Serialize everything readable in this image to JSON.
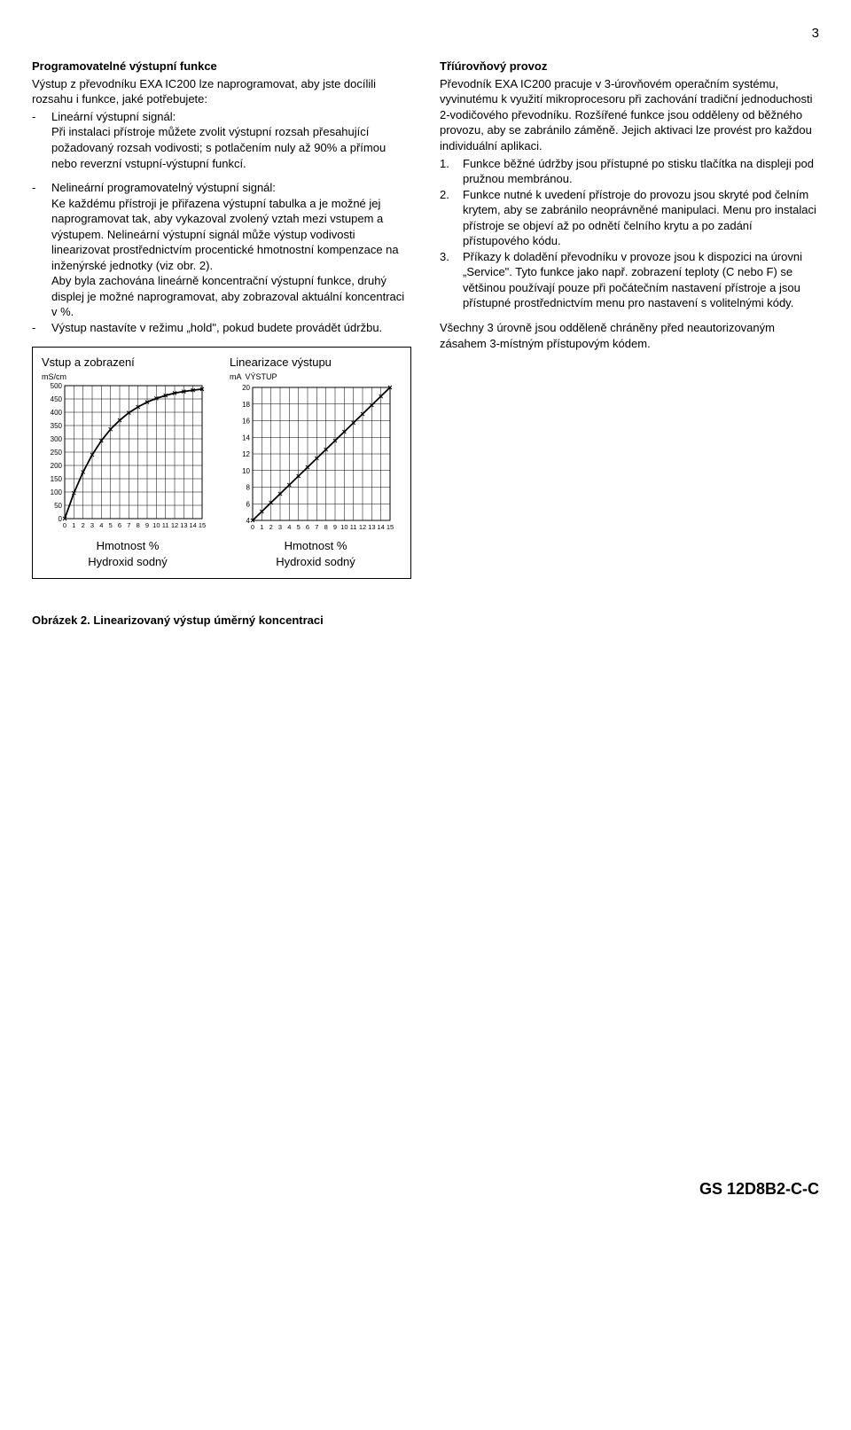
{
  "page_number": "3",
  "left": {
    "heading": "Programovatelné výstupní funkce",
    "intro": "Výstup z převodníku EXA IC200 lze naprogramovat, aby jste docílili rozsahu i funkce, jaké potřebujete:",
    "items": [
      "Lineární výstupní signál:\nPři instalaci přístroje můžete zvolit výstupní rozsah přesahující požadovaný rozsah vodivosti; s potlačením nuly až 90% a přímou nebo reverzní vstupní-výstupní funkcí.",
      "Nelineární programovatelný výstupní signál:\nKe každému přístroji je přiřazena výstupní tabulka a je možné jej naprogramovat tak, aby vykazoval zvolený vztah mezi vstupem a výstupem. Nelineární výstupní signál může výstup vodivosti linearizovat prostřednictvím procentické hmotnostní kompenzace na inženýrské jednotky (viz obr. 2).\nAby byla zachována lineárně koncentrační výstupní funkce, druhý displej je možné naprogramovat, aby zobrazoval aktuální koncentraci v %.",
      "Výstup nastavíte v režimu „hold\", pokud budete provádět údržbu."
    ]
  },
  "right": {
    "heading": "Tříúrovňový provoz",
    "intro": "Převodník EXA IC200 pracuje v 3-úrovňovém operačním systému, vyvinutému k využití mikroprocesoru při zachování tradiční jednoduchosti 2-vodičového převodníku. Rozšířené funkce jsou odděleny od běžného provozu, aby se zabránilo záměně. Jejich aktivaci lze provést pro každou individuální aplikaci.",
    "num_items": [
      "Funkce běžné údržby jsou přístupné po stisku tlačítka na displeji pod pružnou membránou.",
      "Funkce nutné k uvedení přístroje do provozu jsou skryté pod čelním krytem, aby se zabránilo neoprávněné manipulaci. Menu pro instalaci přístroje se objeví až po odnětí čelního krytu a po zadání přístupového kódu.",
      "Příkazy k doladění převodníku v provoze jsou k dispozici na úrovni „Service\". Tyto funkce jako např. zobrazení teploty (C nebo F) se většinou používají pouze při počátečním nastavení přístroje a jsou přístupné prostřednictvím menu pro nastavení s volitelnými kódy."
    ],
    "closing": "Všechny 3 úrovně jsou odděleně chráněny před neautorizovaným zásahem 3-místným přístupovým kódem."
  },
  "chart_box": {
    "left_chart": {
      "title": "Vstup a zobrazení",
      "y_unit": "mS/cm",
      "y_max": 500,
      "y_step": 50,
      "x_max": 15,
      "points": [
        [
          0,
          0
        ],
        [
          1,
          96
        ],
        [
          2,
          175
        ],
        [
          3,
          240
        ],
        [
          4,
          293
        ],
        [
          5,
          336
        ],
        [
          6,
          370
        ],
        [
          7,
          398
        ],
        [
          8,
          420
        ],
        [
          9,
          438
        ],
        [
          10,
          452
        ],
        [
          11,
          463
        ],
        [
          12,
          472
        ],
        [
          13,
          478
        ],
        [
          14,
          483
        ],
        [
          15,
          487
        ]
      ],
      "line_color": "#000",
      "grid_color": "#000",
      "bg": "#fff"
    },
    "right_chart": {
      "title": "Linearizace výstupu",
      "y_unit_left": "mA",
      "y_unit_right": "VÝSTUP",
      "y_min": 4,
      "y_max": 20,
      "y_step": 2,
      "x_max": 15,
      "points": [
        [
          0,
          4
        ],
        [
          1,
          5.07
        ],
        [
          2,
          6.13
        ],
        [
          3,
          7.2
        ],
        [
          4,
          8.27
        ],
        [
          5,
          9.33
        ],
        [
          6,
          10.4
        ],
        [
          7,
          11.47
        ],
        [
          8,
          12.53
        ],
        [
          9,
          13.6
        ],
        [
          10,
          14.67
        ],
        [
          11,
          15.73
        ],
        [
          12,
          16.8
        ],
        [
          13,
          17.87
        ],
        [
          14,
          18.93
        ],
        [
          15,
          20
        ]
      ],
      "line_color": "#000",
      "grid_color": "#000",
      "bg": "#fff"
    },
    "caption_left": "Hmotnost %\nHydroxid sodný",
    "caption_right": "Hmotnost %\nHydroxid sodný"
  },
  "figure_caption": "Obrázek 2. Linearizovaný výstup úměrný koncentraci",
  "footer_code": "GS 12D8B2-C-C"
}
